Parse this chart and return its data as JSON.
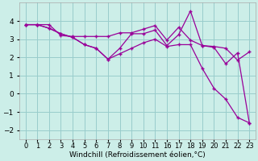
{
  "xlabel": "Windchill (Refroidissement éolien,°C)",
  "bg_color": "#cceee8",
  "line_color": "#990099",
  "grid_color": "#99cccc",
  "line1_y": [
    3.8,
    3.8,
    3.8,
    3.2,
    3.15,
    3.15,
    3.15,
    3.15,
    3.35,
    3.35,
    3.55,
    3.75,
    2.95,
    3.65,
    2.95,
    2.65,
    2.6,
    2.5,
    1.85,
    2.3
  ],
  "line2_y": [
    3.8,
    3.8,
    3.6,
    3.3,
    3.1,
    2.7,
    2.5,
    1.9,
    2.5,
    3.3,
    3.3,
    3.5,
    2.65,
    3.25,
    4.55,
    2.65,
    2.55,
    1.65,
    2.25,
    -1.6
  ],
  "line3_y": [
    3.8,
    3.8,
    3.6,
    3.3,
    3.1,
    2.7,
    2.5,
    1.9,
    2.2,
    2.5,
    2.8,
    3.0,
    2.6,
    2.7,
    2.7,
    1.4,
    0.3,
    -0.3,
    -1.3,
    -1.6
  ],
  "xtick_labels": [
    "0",
    "1",
    "2",
    "3",
    "4",
    "5",
    "6",
    "7",
    "8",
    "9",
    "10",
    "11",
    "16",
    "17",
    "18",
    "19",
    "20",
    "21",
    "22",
    "23"
  ],
  "ylim": [
    -2.5,
    5.0
  ],
  "yticks": [
    -2,
    -1,
    0,
    1,
    2,
    3,
    4
  ],
  "fontsize": 6.5
}
